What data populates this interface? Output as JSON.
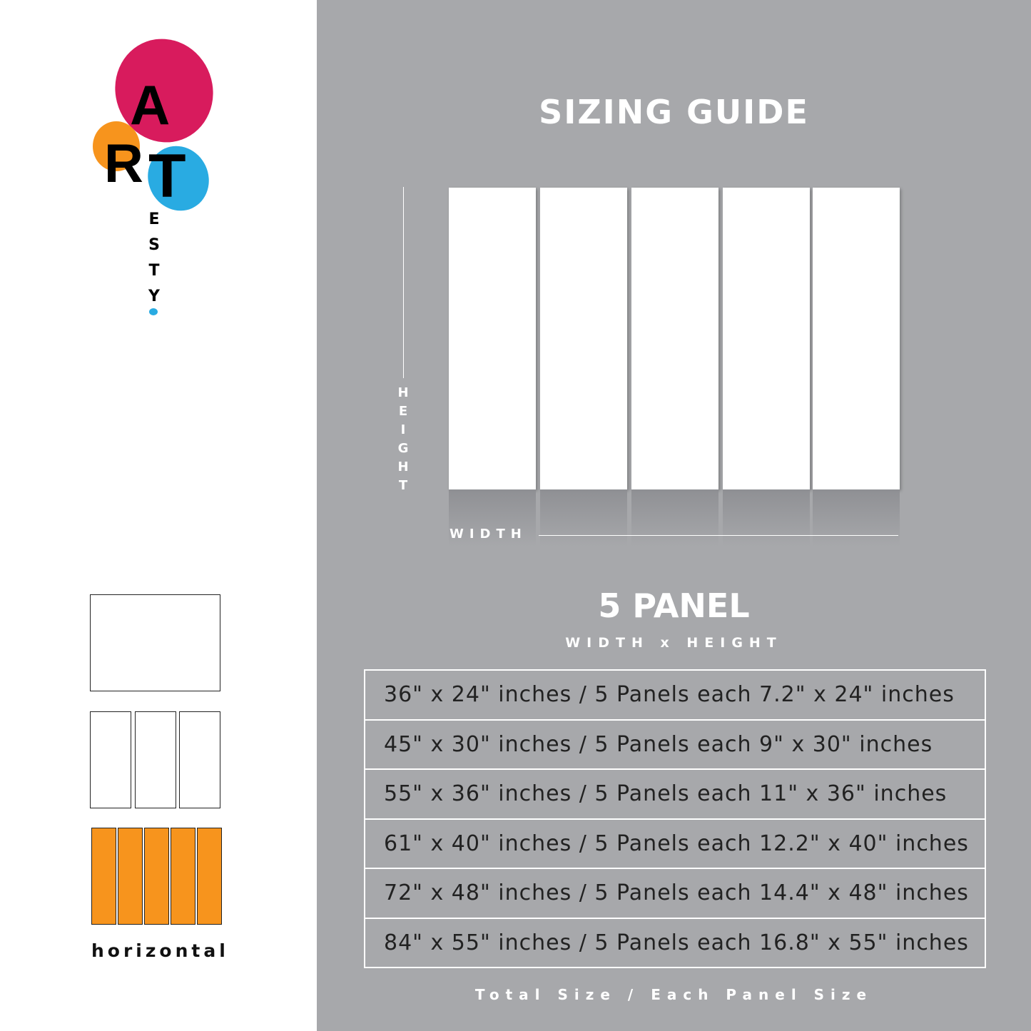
{
  "logo": {
    "letters_main": [
      "A",
      "R",
      "T"
    ],
    "letters_vertical": [
      "E",
      "S",
      "T",
      "Y"
    ],
    "colors": {
      "pink": "#d81b5d",
      "orange": "#f7941d",
      "blue": "#29abe2"
    }
  },
  "sidebar": {
    "orientation_label": "horizontal"
  },
  "header": {
    "title": "SIZING GUIDE"
  },
  "diagram": {
    "height_label": "HEIGHT",
    "width_label": "WIDTH",
    "panel_count": 5
  },
  "product": {
    "name": "5 PANEL",
    "dimension_label": "WIDTH x HEIGHT"
  },
  "sizes": [
    "36\" x 24\" inches / 5 Panels each 7.2\" x 24\" inches",
    "45\" x 30\" inches / 5 Panels each 9\" x 30\" inches",
    "55\" x 36\" inches / 5 Panels each 11\" x 36\" inches",
    "61\" x 40\" inches / 5 Panels each 12.2\" x 40\" inches",
    "72\" x 48\" inches / 5 Panels each 14.4\" x 48\" inches",
    "84\" x 55\" inches / 5 Panels each 16.8\" x 55\" inches"
  ],
  "footer": {
    "caption": "Total Size / Each Panel Size"
  }
}
